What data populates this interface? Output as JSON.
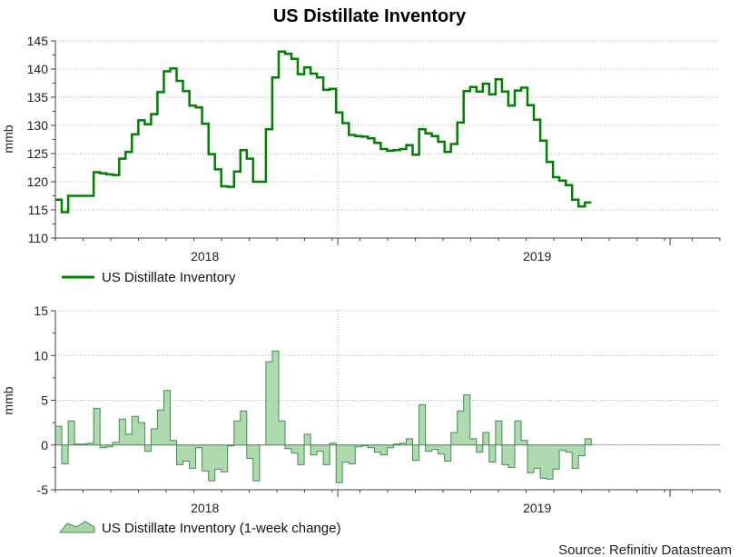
{
  "colors": {
    "line": "#008000",
    "area_fill": "#a6d5a6",
    "area_stroke": "#3f8f4f",
    "grid": "#b0b0b0",
    "axis": "#404040"
  },
  "chart_data": [
    {
      "type": "line",
      "title": "US Distillate Inventory",
      "ylabel": "mmb",
      "xlabel": "",
      "ylim": [
        110,
        145
      ],
      "yticks": [
        110,
        115,
        120,
        125,
        130,
        135,
        140,
        145
      ],
      "x_range": [
        2017.55,
        2019.55
      ],
      "x_ticks": [
        {
          "value": 2018,
          "label": "2018"
        },
        {
          "value": 2019,
          "label": "2019"
        }
      ],
      "x_tick_labels": [
        "2018",
        "2019"
      ],
      "legend": "US Distillate Inventory",
      "series": [
        {
          "name": "US Distillate Inventory",
          "step": true,
          "x_start": 2017.55,
          "x_step": 0.0192,
          "values": [
            116.8,
            114.6,
            117.5,
            117.5,
            117.5,
            117.5,
            121.7,
            121.5,
            121.3,
            121.2,
            124.1,
            125.3,
            128.4,
            130.9,
            130.2,
            132.0,
            135.9,
            139.6,
            140.1,
            137.9,
            136.1,
            133.5,
            133.2,
            130.3,
            124.9,
            122.2,
            119.2,
            119.1,
            121.8,
            125.6,
            124.1,
            120.0,
            120.0,
            129.3,
            138.5,
            143.1,
            142.7,
            141.8,
            139.1,
            140.3,
            139.2,
            138.5,
            136.3,
            136.5,
            132.3,
            130.4,
            128.3,
            128.1,
            128.0,
            127.7,
            126.9,
            125.8,
            125.5,
            125.6,
            125.8,
            126.5,
            124.8,
            129.3,
            128.6,
            128.1,
            127.1,
            125.3,
            126.7,
            130.5,
            136.1,
            136.8,
            136.0,
            137.4,
            135.5,
            138.2,
            136.0,
            133.5,
            136.2,
            136.7,
            133.6,
            131.0,
            127.3,
            123.5,
            120.8,
            120.2,
            119.4,
            116.8,
            115.6,
            116.3
          ]
        }
      ]
    },
    {
      "type": "area",
      "title": "",
      "ylabel": "mmb",
      "xlabel": "",
      "ylim": [
        -5,
        15
      ],
      "yticks": [
        -5,
        0,
        5,
        10,
        15
      ],
      "x_range": [
        2017.55,
        2019.55
      ],
      "x_ticks": [
        {
          "value": 2018,
          "label": "2018"
        },
        {
          "value": 2019,
          "label": "2019"
        }
      ],
      "x_tick_labels": [
        "2018",
        "2019"
      ],
      "legend": "US Distillate Inventory (1-week change)",
      "series": [
        {
          "name": "US Distillate Inventory (1-week change)",
          "step": true,
          "x_start": 2017.55,
          "x_step": 0.0192,
          "values": [
            2.1,
            -2.1,
            2.7,
            0.1,
            0.1,
            0.2,
            4.1,
            -0.3,
            -0.2,
            0.3,
            2.9,
            1.2,
            3.2,
            2.5,
            -0.7,
            1.8,
            3.9,
            6.1,
            0.5,
            -2.2,
            -1.8,
            -2.6,
            -0.3,
            -2.9,
            -4.0,
            -2.7,
            -3.0,
            -0.1,
            2.7,
            3.8,
            -1.5,
            -4.0,
            0.0,
            9.3,
            10.5,
            2.7,
            -0.4,
            -0.9,
            -2.2,
            1.2,
            -1.1,
            -0.7,
            -2.2,
            0.2,
            -4.2,
            -1.9,
            -2.1,
            -0.2,
            -0.1,
            -0.3,
            -0.8,
            -1.1,
            -0.3,
            0.1,
            0.2,
            0.7,
            -1.7,
            4.5,
            -0.7,
            -0.5,
            -1.0,
            -1.8,
            1.4,
            3.8,
            5.6,
            0.7,
            -0.8,
            1.4,
            -1.9,
            2.7,
            -2.2,
            -2.5,
            2.7,
            0.5,
            -3.1,
            -2.6,
            -3.7,
            -3.8,
            -2.7,
            -0.6,
            -0.8,
            -2.6,
            -1.2,
            0.7
          ]
        }
      ]
    }
  ],
  "footer": {
    "source": "Source: Refinitiv Datastream"
  }
}
